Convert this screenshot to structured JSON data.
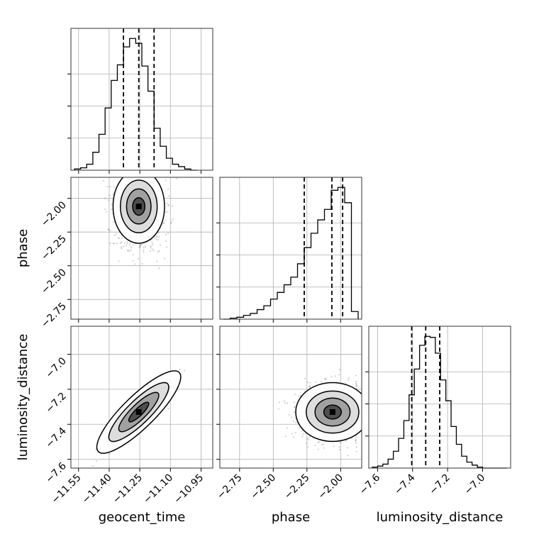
{
  "chart_data": {
    "type": "corner",
    "parameters": [
      "geocent_time",
      "phase",
      "luminosity_distance"
    ],
    "axis_labels": {
      "geocent_time": "geocent_time",
      "phase": "phase",
      "luminosity_distance": "luminosity_distance"
    },
    "grid": true,
    "ticks": {
      "geocent_time": {
        "values": [
          -11.55,
          -11.4,
          -11.25,
          -11.1,
          -10.95
        ],
        "labels": [
          "−11.55",
          "−11.40",
          "−11.25",
          "−11.10",
          "−10.95"
        ]
      },
      "phase": {
        "values": [
          -2.75,
          -2.5,
          -2.25,
          -2.0
        ],
        "labels": [
          "−2.75",
          "−2.50",
          "−2.25",
          "−2.00"
        ]
      },
      "luminosity_distance": {
        "values": [
          -7.6,
          -7.4,
          -7.2,
          -7.0
        ],
        "labels": [
          "−7.6",
          "−7.4",
          "−7.2",
          "−7.0"
        ]
      }
    },
    "ranges": {
      "geocent_time": [
        -11.57,
        -10.91
      ],
      "phase": [
        -2.87,
        -1.87
      ],
      "luminosity_distance": [
        -7.63,
        -6.86
      ]
    },
    "quantiles": {
      "geocent_time": [
        -11.33,
        -11.255,
        -11.18
      ],
      "phase": [
        -2.27,
        -2.065,
        -1.985
      ],
      "luminosity_distance": [
        -7.405,
        -7.325,
        -7.245
      ]
    },
    "histograms": {
      "geocent_time": {
        "edges": [
          -11.57,
          -11.54,
          -11.51,
          -11.48,
          -11.45,
          -11.42,
          -11.39,
          -11.36,
          -11.33,
          -11.3,
          -11.27,
          -11.24,
          -11.21,
          -11.18,
          -11.15,
          -11.12,
          -11.09,
          -11.06,
          -11.03,
          -11.0,
          -10.97
        ],
        "counts": [
          1,
          2,
          5,
          15,
          30,
          52,
          75,
          88,
          103,
          110,
          106,
          87,
          66,
          35,
          20,
          10,
          5,
          3,
          1,
          0
        ]
      },
      "phase": {
        "edges": [
          -2.87,
          -2.82,
          -2.77,
          -2.72,
          -2.67,
          -2.62,
          -2.57,
          -2.52,
          -2.47,
          -2.42,
          -2.37,
          -2.32,
          -2.27,
          -2.22,
          -2.17,
          -2.12,
          -2.07,
          -2.02,
          -1.97,
          -1.92,
          -1.87
        ],
        "counts": [
          0,
          1,
          2,
          4,
          6,
          10,
          14,
          21,
          28,
          36,
          44,
          58,
          75,
          90,
          104,
          115,
          135,
          138,
          122,
          8
        ]
      },
      "luminosity_distance": {
        "edges": [
          -7.63,
          -7.6,
          -7.57,
          -7.54,
          -7.51,
          -7.48,
          -7.45,
          -7.42,
          -7.39,
          -7.36,
          -7.33,
          -7.3,
          -7.27,
          -7.24,
          -7.21,
          -7.18,
          -7.15,
          -7.12,
          -7.09,
          -7.06,
          -7.03,
          -7.0,
          -6.97,
          -6.94,
          -6.91,
          -6.88,
          -6.86
        ],
        "counts": [
          1,
          2,
          4,
          9,
          17,
          30,
          48,
          74,
          100,
          124,
          133,
          132,
          116,
          89,
          68,
          42,
          24,
          12,
          6,
          3,
          1,
          0,
          0,
          0,
          0,
          0
        ]
      }
    },
    "pairs": [
      {
        "x": "geocent_time",
        "y": "phase",
        "mean": [
          -11.255,
          -2.06
        ],
        "std": [
          0.06,
          0.13
        ],
        "corr": 0.0,
        "y_skew_tail": -2.45
      },
      {
        "x": "geocent_time",
        "y": "luminosity_distance",
        "mean": [
          -11.255,
          -7.33
        ],
        "std": [
          0.07,
          0.08
        ],
        "corr": 0.85
      },
      {
        "x": "phase",
        "y": "luminosity_distance",
        "mean": [
          -2.06,
          -7.33
        ],
        "std": [
          0.13,
          0.08
        ],
        "corr": 0.0,
        "x_clip_max": -1.88
      }
    ],
    "colors": {
      "line": "#000000",
      "scatter": "#000000",
      "grid": "#b0b0b0",
      "frame": "#333333"
    }
  }
}
